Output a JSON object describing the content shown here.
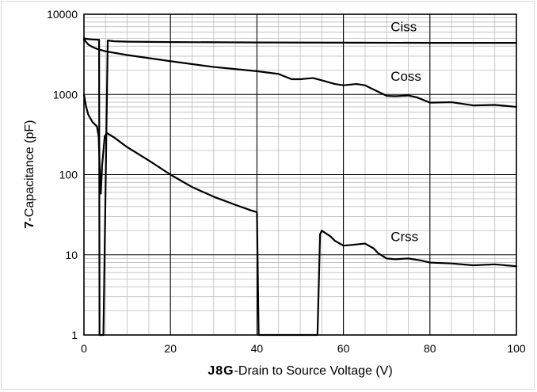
{
  "chart_data": {
    "type": "line",
    "x_axis": {
      "prefix": "J8G",
      "label": "-Drain to Source Voltage (V)",
      "range": [
        0,
        100
      ],
      "ticks": [
        "0",
        "20",
        "40",
        "60",
        "80",
        "100"
      ],
      "minor_step": 5
    },
    "y_axis": {
      "prefix": "7",
      "label": "-Capacitance (pF)",
      "scale": "log",
      "range": [
        1,
        10000
      ],
      "ticks": [
        "1",
        "10",
        "100",
        "1000",
        "10000"
      ]
    },
    "grid": true,
    "series": [
      {
        "name": "Ciss",
        "label_at": [
          70,
          7000
        ],
        "points": [
          [
            0,
            5000
          ],
          [
            1,
            4900
          ],
          [
            2,
            4850
          ],
          [
            3.5,
            4800
          ],
          [
            3.6,
            1
          ],
          [
            4.5,
            1
          ],
          [
            5.5,
            4700
          ],
          [
            7,
            4600
          ],
          [
            10,
            4550
          ],
          [
            20,
            4500
          ],
          [
            40,
            4450
          ],
          [
            60,
            4420
          ],
          [
            80,
            4400
          ],
          [
            100,
            4400
          ]
        ]
      },
      {
        "name": "Coss",
        "label_at": [
          70,
          1700
        ],
        "points": [
          [
            0,
            4900
          ],
          [
            0.5,
            4500
          ],
          [
            1,
            4200
          ],
          [
            2,
            3900
          ],
          [
            3,
            3700
          ],
          [
            5,
            3450
          ],
          [
            10,
            3100
          ],
          [
            20,
            2600
          ],
          [
            30,
            2200
          ],
          [
            40,
            1950
          ],
          [
            45,
            1800
          ],
          [
            48,
            1550
          ],
          [
            50,
            1550
          ],
          [
            53,
            1600
          ],
          [
            55,
            1500
          ],
          [
            58,
            1350
          ],
          [
            60,
            1300
          ],
          [
            63,
            1350
          ],
          [
            65,
            1300
          ],
          [
            67,
            1150
          ],
          [
            70,
            960
          ],
          [
            72,
            950
          ],
          [
            75,
            970
          ],
          [
            77,
            920
          ],
          [
            80,
            790
          ],
          [
            85,
            800
          ],
          [
            90,
            730
          ],
          [
            95,
            740
          ],
          [
            100,
            700
          ]
        ]
      },
      {
        "name": "Crss",
        "label_at": [
          70,
          17
        ],
        "points": [
          [
            0,
            1000
          ],
          [
            0.5,
            700
          ],
          [
            1,
            560
          ],
          [
            2,
            450
          ],
          [
            3,
            400
          ],
          [
            3.4,
            300
          ],
          [
            3.7,
            100
          ],
          [
            3.9,
            58
          ],
          [
            4.2,
            130
          ],
          [
            4.8,
            300
          ],
          [
            5.3,
            330
          ],
          [
            7,
            290
          ],
          [
            10,
            220
          ],
          [
            15,
            150
          ],
          [
            20,
            100
          ],
          [
            25,
            70
          ],
          [
            30,
            53
          ],
          [
            35,
            42
          ],
          [
            38.5,
            36
          ],
          [
            40,
            34
          ],
          [
            40.4,
            1
          ],
          [
            54,
            1
          ],
          [
            54.6,
            18
          ],
          [
            55,
            20
          ],
          [
            57,
            17
          ],
          [
            58,
            15
          ],
          [
            60,
            13
          ],
          [
            62,
            13.3
          ],
          [
            65,
            13.8
          ],
          [
            67,
            12
          ],
          [
            68,
            10.5
          ],
          [
            70,
            9
          ],
          [
            72,
            8.8
          ],
          [
            75,
            9
          ],
          [
            78,
            8.5
          ],
          [
            80,
            8
          ],
          [
            85,
            7.8
          ],
          [
            90,
            7.4
          ],
          [
            95,
            7.6
          ],
          [
            100,
            7.2
          ]
        ]
      }
    ]
  }
}
